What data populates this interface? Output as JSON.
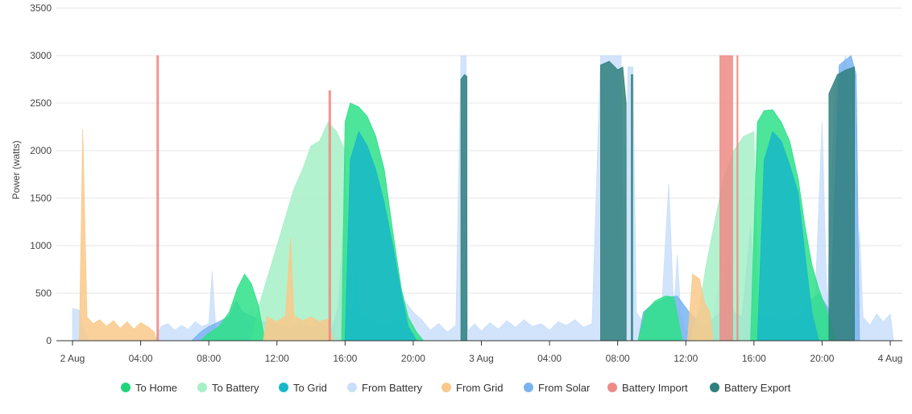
{
  "chart_data": {
    "type": "area",
    "title": "",
    "ylabel": "Power (watts)",
    "xlabel": "",
    "ylim": [
      0,
      3500
    ],
    "xlim": [
      0,
      48
    ],
    "x_unit": "hours since 2 Aug 00:00",
    "y_ticks": [
      0,
      500,
      1000,
      1500,
      2000,
      2500,
      3000,
      3500
    ],
    "x_ticks": [
      {
        "h": 0,
        "label": "2 Aug"
      },
      {
        "h": 4,
        "label": "04:00"
      },
      {
        "h": 8,
        "label": "08:00"
      },
      {
        "h": 12,
        "label": "12:00"
      },
      {
        "h": 16,
        "label": "16:00"
      },
      {
        "h": 20,
        "label": "20:00"
      },
      {
        "h": 24,
        "label": "3 Aug"
      },
      {
        "h": 28,
        "label": "04:00"
      },
      {
        "h": 32,
        "label": "08:00"
      },
      {
        "h": 36,
        "label": "12:00"
      },
      {
        "h": 40,
        "label": "16:00"
      },
      {
        "h": 44,
        "label": "20:00"
      },
      {
        "h": 48,
        "label": "4 Aug"
      }
    ],
    "grid": true,
    "legend_position": "bottom",
    "series": [
      {
        "name": "From Battery",
        "color": "#c9dffa",
        "points": [
          [
            0,
            340
          ],
          [
            0.4,
            320
          ],
          [
            0.6,
            150
          ],
          [
            1,
            0
          ],
          [
            4.8,
            0
          ],
          [
            5.2,
            150
          ],
          [
            5.6,
            180
          ],
          [
            6,
            110
          ],
          [
            6.4,
            160
          ],
          [
            6.8,
            120
          ],
          [
            7.2,
            200
          ],
          [
            7.6,
            150
          ],
          [
            8,
            180
          ],
          [
            8.2,
            730
          ],
          [
            8.4,
            150
          ],
          [
            9,
            60
          ],
          [
            9.5,
            80
          ],
          [
            10,
            150
          ],
          [
            10.5,
            320
          ],
          [
            11,
            100
          ],
          [
            11.5,
            0
          ],
          [
            16,
            0
          ],
          [
            16.2,
            900
          ],
          [
            16.4,
            300
          ],
          [
            16.8,
            80
          ],
          [
            18.3,
            120
          ],
          [
            19,
            280
          ],
          [
            19.5,
            420
          ],
          [
            20,
            300
          ],
          [
            20.5,
            220
          ],
          [
            21,
            110
          ],
          [
            21.5,
            180
          ],
          [
            22,
            90
          ],
          [
            22.5,
            160
          ],
          [
            22.8,
            3000
          ],
          [
            23.1,
            3000
          ],
          [
            23.2,
            100
          ],
          [
            23.6,
            180
          ],
          [
            24,
            100
          ],
          [
            24.5,
            190
          ],
          [
            25,
            120
          ],
          [
            25.5,
            210
          ],
          [
            26,
            140
          ],
          [
            26.5,
            220
          ],
          [
            27,
            150
          ],
          [
            27.5,
            180
          ],
          [
            28,
            110
          ],
          [
            28.5,
            200
          ],
          [
            29,
            160
          ],
          [
            29.5,
            220
          ],
          [
            30,
            140
          ],
          [
            30.5,
            180
          ],
          [
            31,
            3000
          ],
          [
            32.2,
            3000
          ],
          [
            32.4,
            200
          ],
          [
            32.6,
            2880
          ],
          [
            32.9,
            2880
          ],
          [
            33.1,
            300
          ],
          [
            33.8,
            100
          ],
          [
            34.5,
            80
          ],
          [
            35,
            1650
          ],
          [
            35.3,
            300
          ],
          [
            35.5,
            900
          ],
          [
            35.7,
            300
          ],
          [
            36,
            100
          ],
          [
            37.5,
            80
          ],
          [
            38,
            700
          ],
          [
            38.2,
            0
          ],
          [
            43.5,
            0
          ],
          [
            44,
            2300
          ],
          [
            44.3,
            300
          ],
          [
            44.5,
            1500
          ],
          [
            44.8,
            2700
          ],
          [
            45.4,
            3000
          ],
          [
            45.7,
            500
          ],
          [
            46,
            150
          ],
          [
            46.2,
            1150
          ],
          [
            46.4,
            250
          ],
          [
            46.8,
            160
          ],
          [
            47.2,
            280
          ],
          [
            47.6,
            200
          ],
          [
            48,
            280
          ],
          [
            48.2,
            0
          ]
        ]
      },
      {
        "name": "From Solar",
        "color": "#7ab4f0",
        "points": [
          [
            7,
            0
          ],
          [
            7.5,
            90
          ],
          [
            8,
            150
          ],
          [
            8.6,
            200
          ],
          [
            9.2,
            260
          ],
          [
            9.6,
            420
          ],
          [
            10,
            300
          ],
          [
            10.6,
            250
          ],
          [
            11.2,
            200
          ],
          [
            12,
            180
          ],
          [
            12.8,
            120
          ],
          [
            13.4,
            200
          ],
          [
            14,
            140
          ],
          [
            14.6,
            180
          ],
          [
            15.2,
            120
          ],
          [
            15.6,
            350
          ],
          [
            15.9,
            1220
          ],
          [
            16.1,
            350
          ],
          [
            16.4,
            300
          ],
          [
            16.6,
            850
          ],
          [
            16.8,
            300
          ],
          [
            17.4,
            220
          ],
          [
            18,
            200
          ],
          [
            18.6,
            160
          ],
          [
            19.2,
            220
          ],
          [
            19.6,
            120
          ],
          [
            20.3,
            0
          ],
          [
            33.2,
            0
          ],
          [
            33.5,
            300
          ],
          [
            34,
            380
          ],
          [
            34.5,
            420
          ],
          [
            35,
            460
          ],
          [
            35.5,
            470
          ],
          [
            36.2,
            300
          ],
          [
            37,
            150
          ],
          [
            38.1,
            300
          ],
          [
            38.5,
            900
          ],
          [
            38.8,
            300
          ],
          [
            39.3,
            250
          ],
          [
            39.8,
            1200
          ],
          [
            40.1,
            300
          ],
          [
            41,
            250
          ],
          [
            42,
            200
          ],
          [
            42.8,
            300
          ],
          [
            43.3,
            420
          ],
          [
            43.8,
            500
          ],
          [
            44.5,
            300
          ],
          [
            45,
            2900
          ],
          [
            45.7,
            3000
          ],
          [
            46,
            2800
          ],
          [
            46.2,
            0
          ]
        ]
      },
      {
        "name": "To Battery",
        "color": "#a6f0c7",
        "points": [
          [
            10.5,
            0
          ],
          [
            11,
            400
          ],
          [
            11.5,
            700
          ],
          [
            12,
            1000
          ],
          [
            12.5,
            1300
          ],
          [
            13,
            1600
          ],
          [
            13.5,
            1800
          ],
          [
            14,
            2050
          ],
          [
            14.5,
            2100
          ],
          [
            15,
            2300
          ],
          [
            15.5,
            2200
          ],
          [
            16,
            2000
          ],
          [
            16.3,
            0
          ],
          [
            36.3,
            0
          ],
          [
            36.8,
            350
          ],
          [
            37.2,
            800
          ],
          [
            37.7,
            1250
          ],
          [
            38.2,
            1700
          ],
          [
            38.8,
            2000
          ],
          [
            39.4,
            2150
          ],
          [
            40,
            2200
          ],
          [
            40.3,
            0
          ]
        ]
      },
      {
        "name": "To Home",
        "color": "#2ee088",
        "points": [
          [
            7.5,
            0
          ],
          [
            8,
            80
          ],
          [
            8.6,
            150
          ],
          [
            9.2,
            300
          ],
          [
            9.7,
            560
          ],
          [
            10.1,
            700
          ],
          [
            10.5,
            600
          ],
          [
            10.9,
            380
          ],
          [
            11.3,
            0
          ],
          [
            15.8,
            0
          ],
          [
            16,
            2300
          ],
          [
            16.3,
            2500
          ],
          [
            16.8,
            2460
          ],
          [
            17.3,
            2360
          ],
          [
            17.8,
            2150
          ],
          [
            18.3,
            1800
          ],
          [
            18.8,
            1150
          ],
          [
            19.3,
            550
          ],
          [
            19.7,
            250
          ],
          [
            20.2,
            90
          ],
          [
            20.6,
            0
          ],
          [
            33.2,
            0
          ],
          [
            33.6,
            300
          ],
          [
            34.2,
            420
          ],
          [
            34.8,
            470
          ],
          [
            35.3,
            460
          ],
          [
            35.8,
            0
          ],
          [
            39.8,
            0
          ],
          [
            40.2,
            2300
          ],
          [
            40.6,
            2420
          ],
          [
            41.1,
            2430
          ],
          [
            41.6,
            2300
          ],
          [
            42.1,
            2100
          ],
          [
            42.6,
            1700
          ],
          [
            43,
            1200
          ],
          [
            43.4,
            800
          ],
          [
            43.8,
            550
          ],
          [
            44.3,
            300
          ],
          [
            44.8,
            0
          ]
        ]
      },
      {
        "name": "To Grid",
        "color": "#18b8c8",
        "points": [
          [
            16,
            0
          ],
          [
            16.3,
            1900
          ],
          [
            16.8,
            2200
          ],
          [
            17.3,
            2050
          ],
          [
            17.8,
            1800
          ],
          [
            18.3,
            1450
          ],
          [
            18.8,
            1000
          ],
          [
            19.3,
            500
          ],
          [
            19.7,
            150
          ],
          [
            20.2,
            0
          ],
          [
            40.2,
            0
          ],
          [
            40.6,
            1900
          ],
          [
            41.1,
            2200
          ],
          [
            41.6,
            2100
          ],
          [
            42.1,
            1850
          ],
          [
            42.6,
            1550
          ],
          [
            43,
            900
          ],
          [
            43.4,
            300
          ],
          [
            43.8,
            0
          ]
        ]
      },
      {
        "name": "From Grid",
        "color": "#f9c98a",
        "points": [
          [
            0.4,
            0
          ],
          [
            0.6,
            2220
          ],
          [
            0.85,
            250
          ],
          [
            1.2,
            180
          ],
          [
            1.6,
            220
          ],
          [
            2,
            150
          ],
          [
            2.4,
            210
          ],
          [
            2.8,
            130
          ],
          [
            3.2,
            200
          ],
          [
            3.6,
            120
          ],
          [
            4,
            190
          ],
          [
            4.4,
            150
          ],
          [
            4.8,
            90
          ],
          [
            4.9,
            0
          ],
          [
            11.2,
            0
          ],
          [
            11.4,
            250
          ],
          [
            12,
            200
          ],
          [
            12.5,
            260
          ],
          [
            12.8,
            1080
          ],
          [
            13,
            260
          ],
          [
            13.5,
            210
          ],
          [
            14,
            250
          ],
          [
            14.5,
            200
          ],
          [
            15,
            230
          ],
          [
            15.3,
            0
          ],
          [
            36.1,
            0
          ],
          [
            36.4,
            700
          ],
          [
            36.8,
            650
          ],
          [
            37.1,
            400
          ],
          [
            37.4,
            300
          ],
          [
            37.6,
            0
          ]
        ]
      },
      {
        "name": "Battery Import",
        "color": "#ef8a85",
        "points": [
          [
            4.95,
            0
          ],
          [
            4.95,
            3000
          ],
          [
            5.05,
            3000
          ],
          [
            5.05,
            0
          ],
          [
            15.05,
            0
          ],
          [
            15.05,
            2630
          ],
          [
            15.15,
            2630
          ],
          [
            15.15,
            0
          ],
          [
            38.0,
            0
          ],
          [
            38.0,
            3000
          ],
          [
            38.75,
            3000
          ],
          [
            38.75,
            0
          ],
          [
            39.0,
            0
          ],
          [
            39.0,
            3000
          ],
          [
            39.06,
            3000
          ],
          [
            39.06,
            0
          ]
        ]
      },
      {
        "name": "Battery Export",
        "color": "#2f7f7c",
        "points": [
          [
            22.8,
            0
          ],
          [
            22.8,
            2750
          ],
          [
            23.0,
            2800
          ],
          [
            23.15,
            2780
          ],
          [
            23.15,
            0
          ],
          [
            31.0,
            0
          ],
          [
            31.0,
            2900
          ],
          [
            31.5,
            2940
          ],
          [
            32.0,
            2850
          ],
          [
            32.3,
            2880
          ],
          [
            32.5,
            2500
          ],
          [
            32.5,
            0
          ],
          [
            32.8,
            0
          ],
          [
            32.8,
            2800
          ],
          [
            32.88,
            2800
          ],
          [
            32.88,
            0
          ],
          [
            44.4,
            0
          ],
          [
            44.4,
            2600
          ],
          [
            44.9,
            2800
          ],
          [
            45.4,
            2850
          ],
          [
            45.9,
            2880
          ],
          [
            45.9,
            0
          ]
        ]
      }
    ]
  },
  "legend": {
    "to_home": "To Home",
    "to_battery": "To Battery",
    "to_grid": "To Grid",
    "from_battery": "From Battery",
    "from_grid": "From Grid",
    "from_solar": "From Solar",
    "battery_import": "Battery Import",
    "battery_export": "Battery Export"
  }
}
